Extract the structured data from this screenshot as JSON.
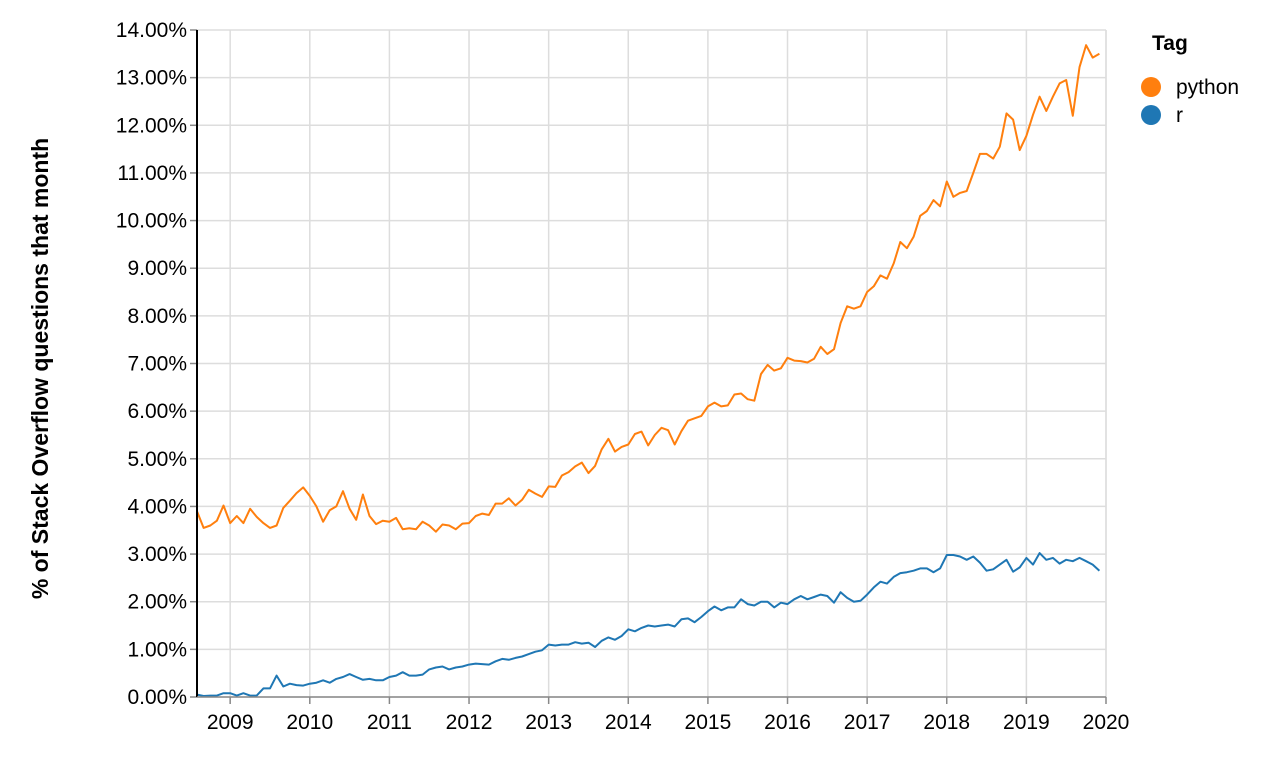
{
  "chart_data": {
    "type": "line",
    "title": "",
    "xlabel": "",
    "ylabel": "% of Stack Overflow questions that month",
    "x_range": [
      "2008-08",
      "2020-01"
    ],
    "ylim": [
      0,
      14
    ],
    "y_tick_values": [
      0,
      1,
      2,
      3,
      4,
      5,
      6,
      7,
      8,
      9,
      10,
      11,
      12,
      13,
      14
    ],
    "y_tick_labels": [
      "0.00%",
      "1.00%",
      "2.00%",
      "3.00%",
      "4.00%",
      "5.00%",
      "6.00%",
      "7.00%",
      "8.00%",
      "9.00%",
      "10.00%",
      "11.00%",
      "12.00%",
      "13.00%",
      "14.00%"
    ],
    "x_tick_years": [
      2009,
      2010,
      2011,
      2012,
      2013,
      2014,
      2015,
      2016,
      2017,
      2018,
      2019,
      2020
    ],
    "x_tick_labels": [
      "2009",
      "2010",
      "2011",
      "2012",
      "2013",
      "2014",
      "2015",
      "2016",
      "2017",
      "2018",
      "2019",
      "2020"
    ],
    "grid": true,
    "legend": {
      "title": "Tag",
      "position": "right"
    },
    "x_start": "2008-08",
    "series": [
      {
        "name": "python",
        "color": "#ff7f0e",
        "values": [
          3.9,
          3.55,
          3.6,
          3.7,
          4.02,
          3.65,
          3.8,
          3.65,
          3.95,
          3.78,
          3.65,
          3.55,
          3.6,
          3.97,
          4.12,
          4.28,
          4.4,
          4.22,
          4.0,
          3.68,
          3.92,
          4.0,
          4.32,
          3.95,
          3.72,
          4.25,
          3.8,
          3.63,
          3.7,
          3.68,
          3.76,
          3.52,
          3.54,
          3.52,
          3.68,
          3.6,
          3.47,
          3.62,
          3.6,
          3.52,
          3.64,
          3.65,
          3.8,
          3.85,
          3.82,
          4.06,
          4.06,
          4.17,
          4.02,
          4.14,
          4.35,
          4.27,
          4.2,
          4.42,
          4.41,
          4.65,
          4.72,
          4.84,
          4.92,
          4.7,
          4.85,
          5.2,
          5.42,
          5.15,
          5.25,
          5.3,
          5.52,
          5.57,
          5.28,
          5.5,
          5.65,
          5.6,
          5.3,
          5.58,
          5.8,
          5.85,
          5.9,
          6.1,
          6.18,
          6.1,
          6.12,
          6.35,
          6.37,
          6.25,
          6.22,
          6.78,
          6.97,
          6.85,
          6.9,
          7.12,
          7.06,
          7.05,
          7.02,
          7.1,
          7.35,
          7.2,
          7.3,
          7.85,
          8.2,
          8.15,
          8.2,
          8.5,
          8.62,
          8.85,
          8.78,
          9.1,
          9.55,
          9.42,
          9.66,
          10.1,
          10.2,
          10.43,
          10.3,
          10.82,
          10.5,
          10.58,
          10.62,
          11.0,
          11.4,
          11.4,
          11.3,
          11.55,
          12.25,
          12.12,
          11.48,
          11.78,
          12.22,
          12.6,
          12.3,
          12.6,
          12.88,
          12.95,
          12.2,
          13.22,
          13.68,
          13.42,
          13.5
        ]
      },
      {
        "name": "r",
        "color": "#1f77b4",
        "values": [
          0.05,
          0.02,
          0.03,
          0.03,
          0.08,
          0.08,
          0.03,
          0.08,
          0.03,
          0.03,
          0.18,
          0.18,
          0.45,
          0.22,
          0.28,
          0.25,
          0.24,
          0.28,
          0.3,
          0.35,
          0.3,
          0.38,
          0.42,
          0.48,
          0.42,
          0.36,
          0.38,
          0.35,
          0.35,
          0.42,
          0.45,
          0.52,
          0.45,
          0.45,
          0.47,
          0.58,
          0.62,
          0.64,
          0.58,
          0.62,
          0.64,
          0.68,
          0.7,
          0.69,
          0.68,
          0.75,
          0.8,
          0.78,
          0.82,
          0.85,
          0.9,
          0.95,
          0.98,
          1.1,
          1.08,
          1.1,
          1.1,
          1.15,
          1.12,
          1.14,
          1.05,
          1.18,
          1.25,
          1.2,
          1.28,
          1.42,
          1.38,
          1.45,
          1.5,
          1.48,
          1.5,
          1.52,
          1.48,
          1.63,
          1.65,
          1.57,
          1.68,
          1.8,
          1.9,
          1.82,
          1.88,
          1.88,
          2.05,
          1.95,
          1.92,
          2.0,
          2.0,
          1.88,
          1.98,
          1.95,
          2.05,
          2.12,
          2.05,
          2.1,
          2.15,
          2.12,
          1.98,
          2.2,
          2.08,
          2.0,
          2.02,
          2.15,
          2.3,
          2.42,
          2.38,
          2.52,
          2.6,
          2.62,
          2.65,
          2.7,
          2.7,
          2.62,
          2.7,
          2.98,
          2.98,
          2.95,
          2.88,
          2.95,
          2.82,
          2.65,
          2.68,
          2.78,
          2.88,
          2.63,
          2.72,
          2.92,
          2.78,
          3.02,
          2.88,
          2.92,
          2.8,
          2.88,
          2.85,
          2.92,
          2.85,
          2.78,
          2.65
        ]
      }
    ]
  }
}
